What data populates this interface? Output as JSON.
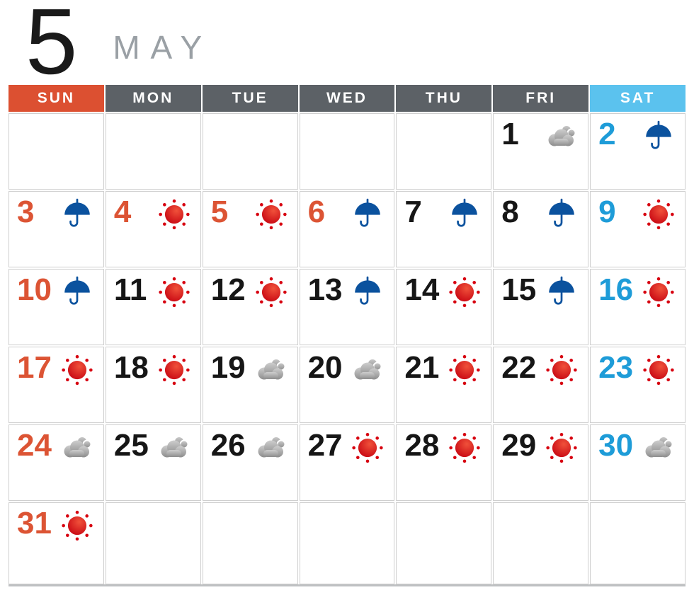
{
  "header": {
    "month_number": "5",
    "month_name": "MAY"
  },
  "weekday_header": [
    {
      "label": "SUN",
      "type": "sunday"
    },
    {
      "label": "MON",
      "type": "weekday"
    },
    {
      "label": "TUE",
      "type": "weekday"
    },
    {
      "label": "WED",
      "type": "weekday"
    },
    {
      "label": "THU",
      "type": "weekday"
    },
    {
      "label": "FRI",
      "type": "weekday"
    },
    {
      "label": "SAT",
      "type": "saturday"
    }
  ],
  "weather_icons": {
    "sunny": "sun-icon",
    "rainy": "umbrella-icon",
    "cloudy": "cloud-icon"
  },
  "weeks": [
    [
      {
        "day": "",
        "weather": "",
        "type": "empty"
      },
      {
        "day": "",
        "weather": "",
        "type": "empty"
      },
      {
        "day": "",
        "weather": "",
        "type": "empty"
      },
      {
        "day": "",
        "weather": "",
        "type": "empty"
      },
      {
        "day": "",
        "weather": "",
        "type": "empty"
      },
      {
        "day": "1",
        "weather": "cloudy",
        "type": "weekday"
      },
      {
        "day": "2",
        "weather": "rainy",
        "type": "saturday"
      }
    ],
    [
      {
        "day": "3",
        "weather": "rainy",
        "type": "sunday"
      },
      {
        "day": "4",
        "weather": "sunny",
        "type": "holiday"
      },
      {
        "day": "5",
        "weather": "sunny",
        "type": "holiday"
      },
      {
        "day": "6",
        "weather": "rainy",
        "type": "holiday"
      },
      {
        "day": "7",
        "weather": "rainy",
        "type": "weekday"
      },
      {
        "day": "8",
        "weather": "rainy",
        "type": "weekday"
      },
      {
        "day": "9",
        "weather": "sunny",
        "type": "saturday"
      }
    ],
    [
      {
        "day": "10",
        "weather": "rainy",
        "type": "sunday"
      },
      {
        "day": "11",
        "weather": "sunny",
        "type": "weekday"
      },
      {
        "day": "12",
        "weather": "sunny",
        "type": "weekday"
      },
      {
        "day": "13",
        "weather": "rainy",
        "type": "weekday"
      },
      {
        "day": "14",
        "weather": "sunny",
        "type": "weekday"
      },
      {
        "day": "15",
        "weather": "rainy",
        "type": "weekday"
      },
      {
        "day": "16",
        "weather": "sunny",
        "type": "saturday"
      }
    ],
    [
      {
        "day": "17",
        "weather": "sunny",
        "type": "sunday"
      },
      {
        "day": "18",
        "weather": "sunny",
        "type": "weekday"
      },
      {
        "day": "19",
        "weather": "cloudy",
        "type": "weekday"
      },
      {
        "day": "20",
        "weather": "cloudy",
        "type": "weekday"
      },
      {
        "day": "21",
        "weather": "sunny",
        "type": "weekday"
      },
      {
        "day": "22",
        "weather": "sunny",
        "type": "weekday"
      },
      {
        "day": "23",
        "weather": "sunny",
        "type": "saturday"
      }
    ],
    [
      {
        "day": "24",
        "weather": "cloudy",
        "type": "sunday"
      },
      {
        "day": "25",
        "weather": "cloudy",
        "type": "weekday"
      },
      {
        "day": "26",
        "weather": "cloudy",
        "type": "weekday"
      },
      {
        "day": "27",
        "weather": "sunny",
        "type": "weekday"
      },
      {
        "day": "28",
        "weather": "sunny",
        "type": "weekday"
      },
      {
        "day": "29",
        "weather": "sunny",
        "type": "weekday"
      },
      {
        "day": "30",
        "weather": "cloudy",
        "type": "saturday"
      }
    ],
    [
      {
        "day": "31",
        "weather": "sunny",
        "type": "sunday"
      },
      {
        "day": "",
        "weather": "",
        "type": "empty"
      },
      {
        "day": "",
        "weather": "",
        "type": "empty"
      },
      {
        "day": "",
        "weather": "",
        "type": "empty"
      },
      {
        "day": "",
        "weather": "",
        "type": "empty"
      },
      {
        "day": "",
        "weather": "",
        "type": "empty"
      },
      {
        "day": "",
        "weather": "",
        "type": "empty"
      }
    ]
  ],
  "colors": {
    "sunday_red": "#dc5434",
    "saturday_blue": "#1e9cd8",
    "weekday_black": "#161616",
    "header_dark_gray": "#5c6166",
    "header_sun_bg": "#dc5031",
    "header_sat_bg": "#5bc2ee",
    "header_text_white": "#ffffff",
    "month_name_gray": "#9aa0a5",
    "grid_line_gray": "#cfcfcf",
    "sun_red": "#d7000f",
    "umbrella_blue": "#0b529e",
    "cloud_gray": "#9b9b9b"
  }
}
